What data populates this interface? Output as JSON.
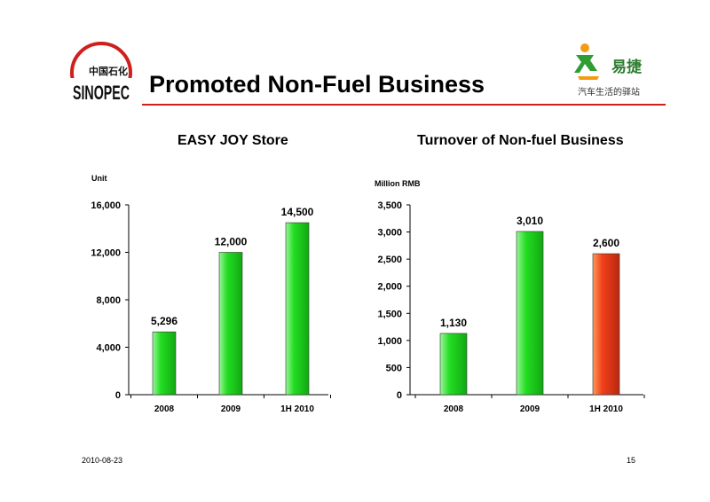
{
  "header": {
    "title": "Promoted Non-Fuel Business",
    "brand_left_text": "SINOPEC",
    "brand_left_chinese": "中国石化",
    "brand_right_name": "易捷",
    "brand_right_tagline": "汽车生活的驿站"
  },
  "colors": {
    "accent_red": "#d0201c",
    "bar_green": "#22dd22",
    "bar_orange": "#f0401a"
  },
  "footer": {
    "date": "2010-08-23",
    "page": "15"
  },
  "chart_data": [
    {
      "type": "bar",
      "title": "EASY JOY Store",
      "ylabel": "Unit",
      "categories": [
        "2008",
        "2009",
        "1H 2010"
      ],
      "values": [
        5296,
        12000,
        14500
      ],
      "value_labels": [
        "5,296",
        "12,000",
        "14,500"
      ],
      "ylim": [
        0,
        16000
      ],
      "yticks": [
        0,
        4000,
        8000,
        12000,
        16000
      ],
      "ytick_labels": [
        "0",
        "4,000",
        "8,000",
        "12,000",
        "16,000"
      ],
      "bar_colors": [
        "green",
        "green",
        "green"
      ],
      "grid": false
    },
    {
      "type": "bar",
      "title": "Turnover of Non-fuel Business",
      "ylabel": "Million RMB",
      "categories": [
        "2008",
        "2009",
        "1H 2010"
      ],
      "values": [
        1130,
        3010,
        2600
      ],
      "value_labels": [
        "1,130",
        "3,010",
        "2,600"
      ],
      "ylim": [
        0,
        3500
      ],
      "yticks": [
        0,
        500,
        1000,
        1500,
        2000,
        2500,
        3000,
        3500
      ],
      "ytick_labels": [
        "0",
        "500",
        "1,000",
        "1,500",
        "2,000",
        "2,500",
        "3,000",
        "3,500"
      ],
      "bar_colors": [
        "green",
        "green",
        "orange"
      ],
      "grid": false
    }
  ]
}
